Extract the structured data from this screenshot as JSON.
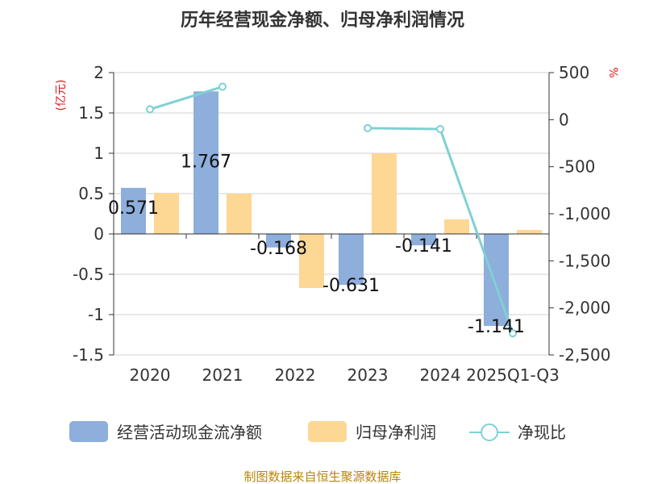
{
  "chart_data": {
    "type": "bar",
    "title": "历年经营现金净额、归母净利润情况",
    "categories": [
      "2020",
      "2021",
      "2022",
      "2023",
      "2024",
      "2025Q1-Q3"
    ],
    "left_axis": {
      "unit": "(亿元)",
      "ylim": [
        -1.5,
        2
      ],
      "ticks": [
        2,
        1.5,
        1,
        0.5,
        0,
        -0.5,
        -1,
        -1.5
      ],
      "tick_labels": [
        "2",
        "1.5",
        "1",
        "0.5",
        "0",
        "-0.5",
        "-1",
        "-1.5"
      ]
    },
    "right_axis": {
      "unit": "%",
      "ylim": [
        -2500,
        500
      ],
      "ticks": [
        500,
        0,
        -500,
        -1000,
        -1500,
        -2000,
        -2500
      ],
      "tick_labels": [
        "500",
        "0",
        "-500",
        "-1,000",
        "-1,500",
        "-2,000",
        "-2,500"
      ]
    },
    "series": [
      {
        "name": "经营活动现金流净额",
        "type": "bar",
        "axis": "left",
        "color": "#8eaedb",
        "values": [
          0.571,
          1.767,
          -0.168,
          -0.631,
          -0.141,
          -1.141
        ],
        "labels": [
          "0.571",
          "1.767",
          "-0.168",
          "-0.631",
          "-0.141",
          "-1.141"
        ]
      },
      {
        "name": "归母净利润",
        "type": "bar",
        "axis": "left",
        "color": "#fdd794",
        "values": [
          0.51,
          0.5,
          -0.67,
          1.0,
          0.18,
          0.05
        ]
      },
      {
        "name": "净现比",
        "type": "line",
        "axis": "right",
        "color": "#7fd1d2",
        "values": [
          110,
          350,
          null,
          -90,
          -100,
          -2270
        ]
      }
    ],
    "legend_position": "bottom"
  },
  "source": "制图数据来自恒生聚源数据库"
}
